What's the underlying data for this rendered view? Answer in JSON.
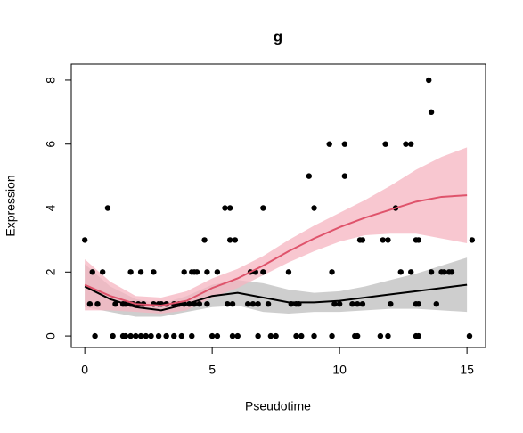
{
  "chart_data": {
    "type": "scatter",
    "title": "g",
    "x_label": "Pseudotime",
    "y_label": "Expression",
    "xlim": [
      -0.53,
      15.73
    ],
    "ylim": [
      -0.36,
      8.5
    ],
    "xticks": [
      0,
      5,
      10,
      15
    ],
    "yticks": [
      0,
      2,
      4,
      6,
      8
    ],
    "grid": false,
    "color": "#000000",
    "x": [
      0,
      4.7,
      5.7,
      5.9,
      10.8,
      10.9,
      11.7,
      11.9,
      13.0,
      13.1,
      15.2,
      0.9,
      5.5,
      5.7,
      7.0,
      9.0,
      12.2,
      8.8,
      10.2,
      9.6,
      10.2,
      11.8,
      12.6,
      12.8,
      13.6,
      13.5,
      0.3,
      0.7,
      1.8,
      2.2,
      2.7,
      3.9,
      4.2,
      4.3,
      4.4,
      4.8,
      5.2,
      6.5,
      6.7,
      7.0,
      8.0,
      9.7,
      12.4,
      12.8,
      13.6,
      14.0,
      14.1,
      14.3,
      14.4,
      0.2,
      0.5,
      1.2,
      1.5,
      1.6,
      1.8,
      1.9,
      2.1,
      2.3,
      2.7,
      2.9,
      3.0,
      3.2,
      3.5,
      3.7,
      3.9,
      4.1,
      4.3,
      4.5,
      4.8,
      5.6,
      5.8,
      6.4,
      6.6,
      6.8,
      7.2,
      8.1,
      8.3,
      8.4,
      9.8,
      10.0,
      10.5,
      10.7,
      10.9,
      12.0,
      13.0,
      13.1,
      13.8,
      0.4,
      1.1,
      1.5,
      1.6,
      1.8,
      2.0,
      2.2,
      2.4,
      2.6,
      2.9,
      3.2,
      3.5,
      3.8,
      4.2,
      5.0,
      5.2,
      5.8,
      6.0,
      6.8,
      7.3,
      7.5,
      8.3,
      8.5,
      9.0,
      9.7,
      10.6,
      10.7,
      11.6,
      11.9,
      13.0,
      13.1,
      15.1
    ],
    "values": [
      3,
      3,
      3,
      3,
      3,
      3,
      3,
      3,
      3,
      3,
      3,
      4,
      4,
      4,
      4,
      4,
      4,
      5,
      5,
      6,
      6,
      6,
      6,
      6,
      7,
      8,
      2,
      2,
      2,
      2,
      2,
      2,
      2,
      2,
      2,
      2,
      2,
      2,
      2,
      2,
      2,
      2,
      2,
      2,
      2,
      2,
      2,
      2,
      2,
      1,
      1,
      1,
      1,
      1,
      1,
      1,
      1,
      1,
      1,
      1,
      1,
      1,
      1,
      1,
      1,
      1,
      1,
      1,
      1,
      1,
      1,
      1,
      1,
      1,
      1,
      1,
      1,
      1,
      1,
      1,
      1,
      1,
      1,
      1,
      1,
      1,
      1,
      0,
      0,
      0,
      0,
      0,
      0,
      0,
      0,
      0,
      0,
      0,
      0,
      0,
      0,
      0,
      0,
      0,
      0,
      0,
      0,
      0,
      0,
      0,
      0,
      0,
      0,
      0,
      0,
      0,
      0,
      0,
      0
    ],
    "smooths": [
      {
        "color": "#000000",
        "band_color": "#bebebe",
        "x": [
          0,
          1,
          2,
          3,
          4,
          5,
          6,
          7,
          8,
          9,
          10,
          11,
          12,
          13,
          14,
          15
        ],
        "values": [
          1.55,
          1.15,
          0.9,
          0.8,
          1.0,
          1.25,
          1.35,
          1.2,
          1.05,
          1.05,
          1.1,
          1.2,
          1.3,
          1.4,
          1.5,
          1.6
        ],
        "lower": [
          0.9,
          0.75,
          0.6,
          0.6,
          0.75,
          0.9,
          0.95,
          0.75,
          0.7,
          0.75,
          0.75,
          0.8,
          0.85,
          0.85,
          0.8,
          0.75
        ],
        "upper": [
          2.25,
          1.55,
          1.15,
          1.0,
          1.25,
          1.6,
          1.75,
          1.65,
          1.45,
          1.35,
          1.4,
          1.55,
          1.75,
          1.95,
          2.2,
          2.45
        ]
      },
      {
        "color": "#df536b",
        "band_color": "#f5b4c0",
        "x": [
          0,
          1,
          2,
          3,
          4,
          5,
          6,
          7,
          8,
          9,
          10,
          11,
          12,
          13,
          14,
          15
        ],
        "values": [
          1.6,
          1.25,
          1.0,
          0.95,
          1.1,
          1.5,
          1.8,
          2.2,
          2.65,
          3.05,
          3.4,
          3.7,
          3.95,
          4.2,
          4.35,
          4.4
        ],
        "lower": [
          0.8,
          0.8,
          0.75,
          0.7,
          0.8,
          1.2,
          1.5,
          1.9,
          2.3,
          2.65,
          2.95,
          3.15,
          3.2,
          3.2,
          3.05,
          2.9
        ],
        "upper": [
          2.4,
          1.7,
          1.25,
          1.2,
          1.4,
          1.8,
          2.1,
          2.5,
          3.0,
          3.45,
          3.85,
          4.25,
          4.7,
          5.2,
          5.6,
          5.9
        ]
      }
    ]
  }
}
